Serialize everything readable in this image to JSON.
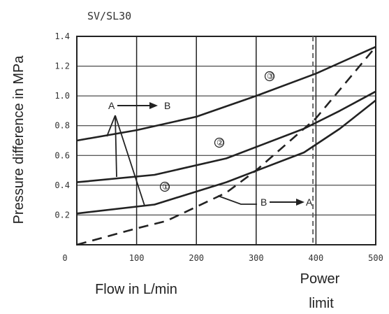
{
  "chart_data": {
    "type": "line",
    "title": "SV/SL30",
    "xlabel": "Flow in L/min",
    "ylabel": "Pressure difference in MPa",
    "xlim": [
      0,
      500
    ],
    "ylim": [
      0,
      1.4
    ],
    "x_ticks": [
      "0",
      "100",
      "200",
      "300",
      "400",
      "500"
    ],
    "y_ticks": [
      "0.2",
      "0.4",
      "0.6",
      "0.8",
      "1.0",
      "1.2",
      "1.4"
    ],
    "grid": true,
    "power_limit_label_line1": "Power",
    "power_limit_label_line2": "limit",
    "power_limit_x": 395,
    "series": [
      {
        "name": "①",
        "direction": "A→B",
        "style": "solid",
        "points": [
          [
            0,
            0.21
          ],
          [
            130,
            0.27
          ],
          [
            250,
            0.42
          ],
          [
            380,
            0.62
          ],
          [
            440,
            0.78
          ],
          [
            500,
            0.97
          ]
        ]
      },
      {
        "name": "②",
        "direction": "A→B",
        "style": "solid",
        "points": [
          [
            0,
            0.42
          ],
          [
            130,
            0.47
          ],
          [
            250,
            0.58
          ],
          [
            380,
            0.78
          ],
          [
            440,
            0.9
          ],
          [
            500,
            1.03
          ]
        ]
      },
      {
        "name": "③",
        "direction": "A→B",
        "style": "solid",
        "points": [
          [
            0,
            0.7
          ],
          [
            100,
            0.77
          ],
          [
            200,
            0.86
          ],
          [
            300,
            1.0
          ],
          [
            400,
            1.15
          ],
          [
            500,
            1.33
          ]
        ]
      },
      {
        "name": "",
        "direction": "B→A",
        "style": "dashed",
        "points": [
          [
            0,
            0.0
          ],
          [
            100,
            0.11
          ],
          [
            150,
            0.16
          ],
          [
            250,
            0.35
          ],
          [
            300,
            0.5
          ],
          [
            400,
            0.85
          ],
          [
            500,
            1.33
          ]
        ]
      }
    ],
    "annotations": {
      "ab_from": "A",
      "ab_to": "B",
      "ba_from": "B",
      "ba_to": "A"
    }
  }
}
